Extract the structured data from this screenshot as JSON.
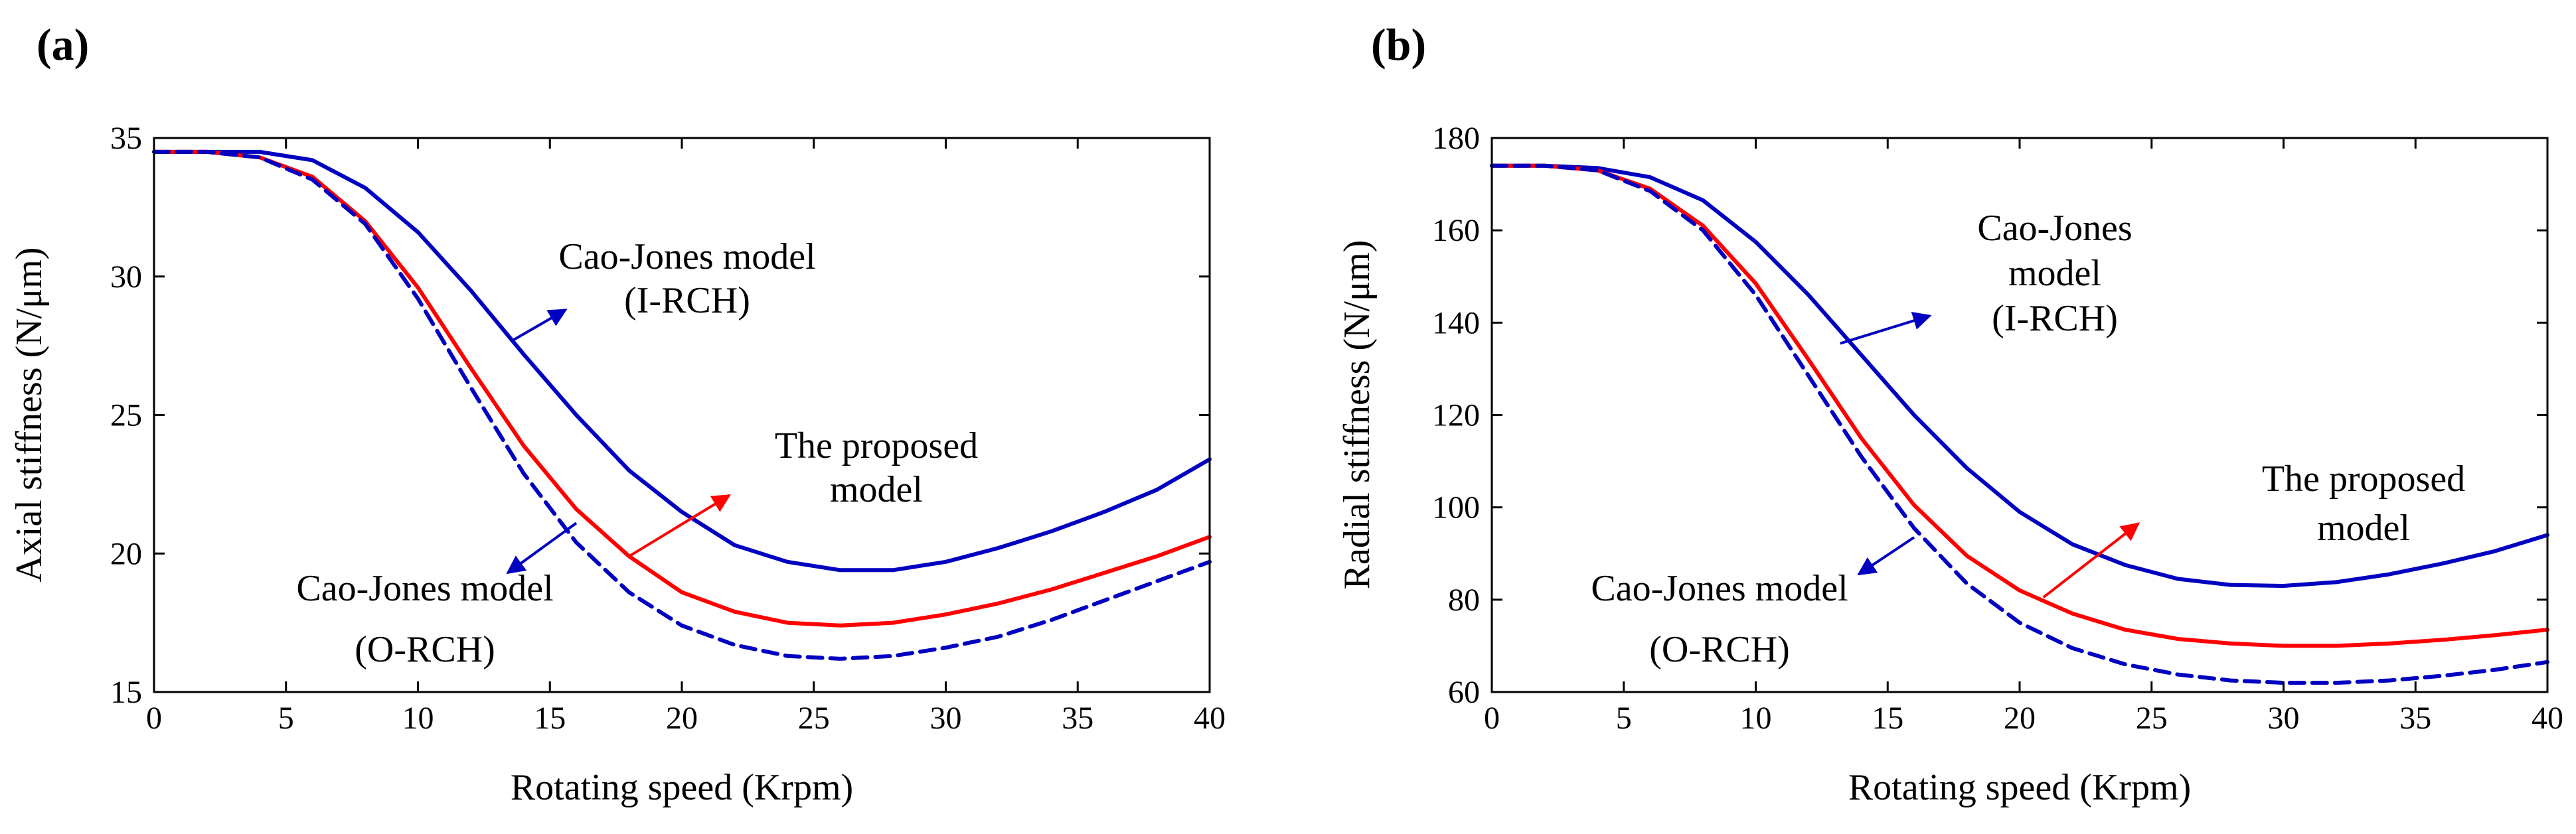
{
  "chart_data": [
    {
      "type": "line",
      "panel_label": "(a)",
      "xlabel": "Rotating speed (Krpm)",
      "ylabel": "Axial stiffness (N/μm)",
      "xlim": [
        0,
        40
      ],
      "ylim": [
        15,
        35
      ],
      "xticks": [
        "0",
        "5",
        "10",
        "15",
        "20",
        "25",
        "30",
        "35",
        "40"
      ],
      "yticks": [
        "15",
        "20",
        "25",
        "30",
        "35"
      ],
      "grid": false,
      "x": [
        0,
        2,
        4,
        6,
        8,
        10,
        12,
        14,
        16,
        18,
        20,
        22,
        24,
        26,
        28,
        30,
        32,
        34,
        36,
        38,
        40
      ],
      "series": [
        {
          "name": "Cao-Jones model (I-RCH)",
          "color": "#0000c0",
          "style": "solid",
          "values": [
            34.5,
            34.5,
            34.5,
            34.2,
            33.2,
            31.6,
            29.5,
            27.2,
            25.0,
            23.0,
            21.5,
            20.3,
            19.7,
            19.4,
            19.4,
            19.7,
            20.2,
            20.8,
            21.5,
            22.3,
            23.4
          ]
        },
        {
          "name": "The proposed model",
          "color": "#ff0000",
          "style": "solid",
          "values": [
            34.5,
            34.5,
            34.3,
            33.6,
            32.0,
            29.6,
            26.7,
            23.9,
            21.6,
            19.9,
            18.6,
            17.9,
            17.5,
            17.4,
            17.5,
            17.8,
            18.2,
            18.7,
            19.3,
            19.9,
            20.6
          ]
        },
        {
          "name": "Cao-Jones model (O-RCH)",
          "color": "#0000c0",
          "style": "dashed",
          "values": [
            34.5,
            34.5,
            34.3,
            33.5,
            31.9,
            29.2,
            26.0,
            22.9,
            20.4,
            18.6,
            17.4,
            16.7,
            16.3,
            16.2,
            16.3,
            16.6,
            17.0,
            17.6,
            18.3,
            19.0,
            19.7
          ]
        }
      ],
      "annotations": [
        {
          "lines": [
            "Cao-Jones model",
            "(I-RCH)"
          ],
          "color": "#0000c0",
          "arrow_from": [
            13.6,
            27.7
          ],
          "arrow_to": [
            15.6,
            28.8
          ]
        },
        {
          "lines": [
            "The proposed",
            "model"
          ],
          "color": "#ff0000",
          "arrow_from": [
            18,
            19.9
          ],
          "arrow_to": [
            21.8,
            22.1
          ]
        },
        {
          "lines": [
            "Cao-Jones model",
            "(O-RCH)"
          ],
          "color": "#0000c0",
          "arrow_from": [
            16,
            21.1
          ],
          "arrow_to": [
            13.4,
            19.3
          ]
        }
      ]
    },
    {
      "type": "line",
      "panel_label": "(b)",
      "xlabel": "Rotating speed (Krpm)",
      "ylabel": "Radial stiffness (N/μm)",
      "xlim": [
        0,
        40
      ],
      "ylim": [
        60,
        180
      ],
      "xticks": [
        "0",
        "5",
        "10",
        "15",
        "20",
        "25",
        "30",
        "35",
        "40"
      ],
      "yticks": [
        "60",
        "80",
        "100",
        "120",
        "140",
        "160",
        "180"
      ],
      "grid": false,
      "x": [
        0,
        2,
        4,
        6,
        8,
        10,
        12,
        14,
        16,
        18,
        20,
        22,
        24,
        26,
        28,
        30,
        32,
        34,
        36,
        38,
        40
      ],
      "series": [
        {
          "name": "Cao-Jones model (I-RCH)",
          "color": "#0000c0",
          "style": "solid",
          "values": [
            174,
            174,
            173.5,
            171.5,
            166.5,
            157.5,
            146,
            133,
            120,
            108.5,
            99,
            92,
            87.5,
            84.5,
            83.2,
            83,
            83.8,
            85.5,
            87.8,
            90.5,
            94
          ]
        },
        {
          "name": "The proposed model",
          "color": "#ff0000",
          "style": "solid",
          "values": [
            174,
            174,
            173,
            169,
            161,
            148.5,
            132,
            115,
            100.5,
            89.5,
            82,
            77,
            73.5,
            71.5,
            70.5,
            70,
            70,
            70.5,
            71.3,
            72.3,
            73.5
          ]
        },
        {
          "name": "Cao-Jones model (O-RCH)",
          "color": "#0000c0",
          "style": "dashed",
          "values": [
            174,
            174,
            173,
            168.5,
            160,
            146,
            128.5,
            111,
            95.5,
            83.5,
            75,
            69.5,
            66,
            63.8,
            62.5,
            62,
            62,
            62.5,
            63.5,
            64.8,
            66.5
          ]
        }
      ],
      "annotations": [
        {
          "lines": [
            "Cao-Jones",
            "model",
            "(I-RCH)"
          ],
          "color": "#0000c0",
          "arrow_from": [
            13.2,
            135.5
          ],
          "arrow_to": [
            16.6,
            141.5
          ]
        },
        {
          "lines": [
            "The proposed",
            "model"
          ],
          "color": "#ff0000",
          "arrow_from": [
            20.9,
            80.5
          ],
          "arrow_to": [
            24.5,
            96.5
          ]
        },
        {
          "lines": [
            "Cao-Jones model",
            "(O-RCH)"
          ],
          "color": "#0000c0",
          "arrow_from": [
            16,
            93.5
          ],
          "arrow_to": [
            13.9,
            85.5
          ]
        }
      ]
    }
  ]
}
